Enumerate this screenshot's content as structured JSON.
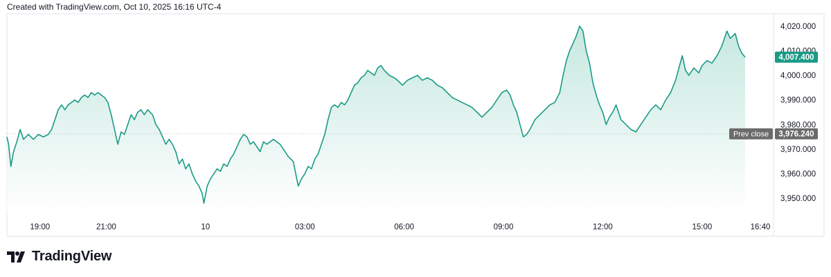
{
  "header": {
    "text": "Created with TradingView.com, Oct 10, 2025 16:16 UTC-4"
  },
  "brand": {
    "name": "TradingView"
  },
  "colors": {
    "line": "#1a9a85",
    "fill_top": "#bfe5dc",
    "fill_bottom": "#ffffff",
    "last_tag": "#1a9a85",
    "prev_tag": "#6b6b6b"
  },
  "chart_data": {
    "type": "area",
    "ylim": [
      3945,
      4025
    ],
    "y_ticks": [
      "3,950.000",
      "3,960.000",
      "3,970.000",
      "3,980.000",
      "3,990.000",
      "4,000.000",
      "4,010.000",
      "4,020.000"
    ],
    "y_tick_values": [
      3950,
      3960,
      3970,
      3980,
      3990,
      4000,
      4010,
      4020
    ],
    "x_ticks": [
      "19:00",
      "21:00",
      "10",
      "03:00",
      "06:00",
      "09:00",
      "12:00",
      "15:00",
      "16:40"
    ],
    "x_tick_hours": [
      1.0,
      3.0,
      6.0,
      9.0,
      12.0,
      15.0,
      18.0,
      21.0,
      22.67
    ],
    "x_range_hours": [
      0,
      22.3
    ],
    "last_value_label": "4,007.400",
    "prev_close_label": "Prev close",
    "prev_close_value_label": "3,976.240",
    "prev_close": 3976.24,
    "series": [
      {
        "points": [
          [
            0.0,
            3975
          ],
          [
            0.05,
            3972
          ],
          [
            0.12,
            3963
          ],
          [
            0.2,
            3969
          ],
          [
            0.3,
            3973
          ],
          [
            0.4,
            3978
          ],
          [
            0.5,
            3974
          ],
          [
            0.65,
            3976
          ],
          [
            0.8,
            3974
          ],
          [
            0.95,
            3976
          ],
          [
            1.1,
            3975
          ],
          [
            1.25,
            3976
          ],
          [
            1.35,
            3978
          ],
          [
            1.45,
            3982
          ],
          [
            1.55,
            3986
          ],
          [
            1.65,
            3988
          ],
          [
            1.75,
            3986
          ],
          [
            1.85,
            3988
          ],
          [
            1.95,
            3989
          ],
          [
            2.05,
            3990
          ],
          [
            2.15,
            3989
          ],
          [
            2.25,
            3991
          ],
          [
            2.35,
            3992
          ],
          [
            2.45,
            3991
          ],
          [
            2.55,
            3993
          ],
          [
            2.65,
            3992
          ],
          [
            2.75,
            3993
          ],
          [
            2.85,
            3992
          ],
          [
            2.95,
            3991
          ],
          [
            3.05,
            3989
          ],
          [
            3.15,
            3984
          ],
          [
            3.25,
            3978
          ],
          [
            3.35,
            3972
          ],
          [
            3.45,
            3977
          ],
          [
            3.55,
            3976
          ],
          [
            3.65,
            3980
          ],
          [
            3.75,
            3984
          ],
          [
            3.85,
            3982
          ],
          [
            3.95,
            3985
          ],
          [
            4.05,
            3986
          ],
          [
            4.15,
            3984
          ],
          [
            4.25,
            3986
          ],
          [
            4.4,
            3984
          ],
          [
            4.5,
            3980
          ],
          [
            4.6,
            3978
          ],
          [
            4.7,
            3975
          ],
          [
            4.8,
            3972
          ],
          [
            4.9,
            3974
          ],
          [
            5.0,
            3972
          ],
          [
            5.1,
            3969
          ],
          [
            5.2,
            3964
          ],
          [
            5.3,
            3966
          ],
          [
            5.4,
            3962
          ],
          [
            5.5,
            3964
          ],
          [
            5.6,
            3960
          ],
          [
            5.7,
            3957
          ],
          [
            5.8,
            3955
          ],
          [
            5.9,
            3952
          ],
          [
            5.95,
            3948
          ],
          [
            6.05,
            3955
          ],
          [
            6.15,
            3958
          ],
          [
            6.25,
            3960
          ],
          [
            6.35,
            3962
          ],
          [
            6.45,
            3961
          ],
          [
            6.55,
            3964
          ],
          [
            6.65,
            3963
          ],
          [
            6.75,
            3966
          ],
          [
            6.85,
            3968
          ],
          [
            6.95,
            3971
          ],
          [
            7.05,
            3974
          ],
          [
            7.15,
            3976
          ],
          [
            7.25,
            3975
          ],
          [
            7.35,
            3972
          ],
          [
            7.45,
            3973
          ],
          [
            7.55,
            3971
          ],
          [
            7.65,
            3969
          ],
          [
            7.75,
            3973
          ],
          [
            7.85,
            3972
          ],
          [
            7.95,
            3973
          ],
          [
            8.05,
            3974
          ],
          [
            8.15,
            3973
          ],
          [
            8.25,
            3972
          ],
          [
            8.35,
            3970
          ],
          [
            8.5,
            3967
          ],
          [
            8.65,
            3965
          ],
          [
            8.8,
            3955
          ],
          [
            8.9,
            3958
          ],
          [
            9.0,
            3960
          ],
          [
            9.1,
            3963
          ],
          [
            9.2,
            3962
          ],
          [
            9.3,
            3966
          ],
          [
            9.4,
            3968
          ],
          [
            9.5,
            3972
          ],
          [
            9.6,
            3976
          ],
          [
            9.7,
            3982
          ],
          [
            9.8,
            3987
          ],
          [
            9.9,
            3988
          ],
          [
            10.0,
            3987
          ],
          [
            10.1,
            3989
          ],
          [
            10.2,
            3988
          ],
          [
            10.3,
            3990
          ],
          [
            10.4,
            3993
          ],
          [
            10.5,
            3996
          ],
          [
            10.6,
            3997
          ],
          [
            10.7,
            3999
          ],
          [
            10.8,
            4000
          ],
          [
            10.9,
            4002
          ],
          [
            11.0,
            4001
          ],
          [
            11.1,
            4000
          ],
          [
            11.2,
            4003
          ],
          [
            11.3,
            4004
          ],
          [
            11.4,
            4002
          ],
          [
            11.55,
            4000
          ],
          [
            11.7,
            3999
          ],
          [
            11.8,
            3998
          ],
          [
            11.95,
            3996
          ],
          [
            12.1,
            3998
          ],
          [
            12.25,
            3999
          ],
          [
            12.4,
            4000
          ],
          [
            12.55,
            3998
          ],
          [
            12.7,
            3999
          ],
          [
            12.85,
            3998
          ],
          [
            13.0,
            3996
          ],
          [
            13.15,
            3995
          ],
          [
            13.3,
            3993
          ],
          [
            13.45,
            3991
          ],
          [
            13.6,
            3990
          ],
          [
            13.75,
            3989
          ],
          [
            13.9,
            3988
          ],
          [
            14.05,
            3987
          ],
          [
            14.2,
            3985
          ],
          [
            14.35,
            3983
          ],
          [
            14.5,
            3985
          ],
          [
            14.65,
            3987
          ],
          [
            14.8,
            3990
          ],
          [
            14.95,
            3993
          ],
          [
            15.1,
            3994
          ],
          [
            15.2,
            3992
          ],
          [
            15.3,
            3988
          ],
          [
            15.4,
            3985
          ],
          [
            15.5,
            3980
          ],
          [
            15.6,
            3975
          ],
          [
            15.7,
            3976
          ],
          [
            15.8,
            3978
          ],
          [
            15.95,
            3982
          ],
          [
            16.1,
            3984
          ],
          [
            16.25,
            3986
          ],
          [
            16.4,
            3988
          ],
          [
            16.55,
            3989
          ],
          [
            16.7,
            3993
          ],
          [
            16.8,
            4000
          ],
          [
            16.9,
            4006
          ],
          [
            17.0,
            4010
          ],
          [
            17.1,
            4013
          ],
          [
            17.2,
            4016
          ],
          [
            17.3,
            4020
          ],
          [
            17.4,
            4018
          ],
          [
            17.5,
            4010
          ],
          [
            17.6,
            4005
          ],
          [
            17.7,
            3997
          ],
          [
            17.8,
            3992
          ],
          [
            17.9,
            3988
          ],
          [
            18.0,
            3985
          ],
          [
            18.1,
            3980
          ],
          [
            18.2,
            3983
          ],
          [
            18.3,
            3985
          ],
          [
            18.4,
            3988
          ],
          [
            18.55,
            3982
          ],
          [
            18.7,
            3980
          ],
          [
            18.85,
            3978
          ],
          [
            19.0,
            3977
          ],
          [
            19.15,
            3980
          ],
          [
            19.3,
            3983
          ],
          [
            19.45,
            3986
          ],
          [
            19.6,
            3988
          ],
          [
            19.75,
            3986
          ],
          [
            19.9,
            3990
          ],
          [
            20.05,
            3993
          ],
          [
            20.2,
            3998
          ],
          [
            20.3,
            4003
          ],
          [
            20.4,
            4008
          ],
          [
            20.5,
            4002
          ],
          [
            20.6,
            4000
          ],
          [
            20.75,
            4003
          ],
          [
            20.9,
            4001
          ],
          [
            21.0,
            4004
          ],
          [
            21.15,
            4006
          ],
          [
            21.3,
            4005
          ],
          [
            21.45,
            4008
          ],
          [
            21.6,
            4012
          ],
          [
            21.75,
            4018
          ],
          [
            21.85,
            4015
          ],
          [
            22.0,
            4017
          ],
          [
            22.1,
            4012
          ],
          [
            22.2,
            4009
          ],
          [
            22.3,
            4007.4
          ]
        ]
      }
    ]
  }
}
